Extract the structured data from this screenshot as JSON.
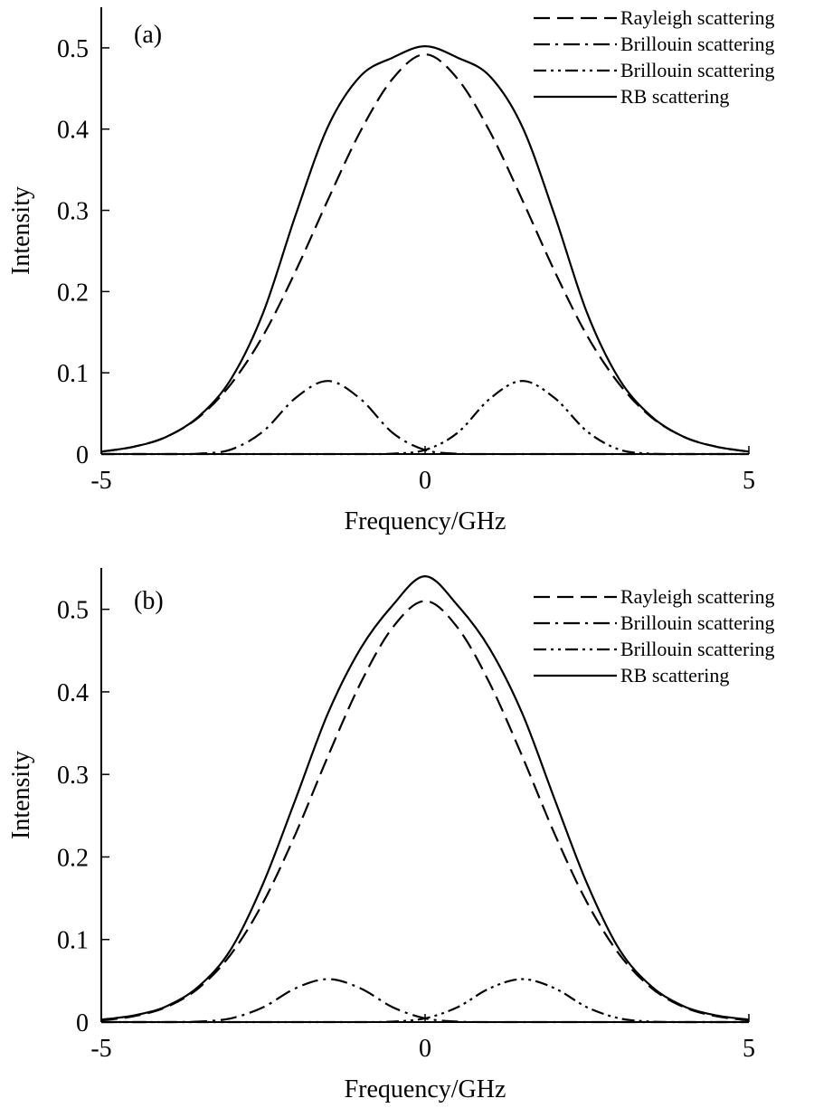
{
  "chart_data": [
    {
      "type": "line",
      "panel_label": "(a)",
      "xlabel": "Frequency/GHz",
      "ylabel": "Intensity",
      "xlim": [
        -5,
        5
      ],
      "ylim": [
        0,
        0.55
      ],
      "xticks": [
        -5,
        0,
        5
      ],
      "xtick_labels": [
        "-5",
        "0",
        "5"
      ],
      "yticks": [
        0,
        0.1,
        0.2,
        0.3,
        0.4,
        0.5
      ],
      "ytick_labels": [
        "0",
        "0.1",
        "0.2",
        "0.3",
        "0.4",
        "0.5"
      ],
      "grid": false,
      "legend_position": "top-right",
      "x": [
        -5,
        -4.5,
        -4,
        -3.5,
        -3,
        -2.5,
        -2,
        -1.5,
        -1,
        -0.5,
        0,
        0.5,
        1,
        1.5,
        2,
        2.5,
        3,
        3.5,
        4,
        4.5,
        5
      ],
      "series": [
        {
          "name": "Rayleigh scattering",
          "style": "dashed",
          "values": [
            0.003,
            0.009,
            0.021,
            0.045,
            0.086,
            0.146,
            0.225,
            0.313,
            0.397,
            0.462,
            0.492,
            0.462,
            0.397,
            0.313,
            0.225,
            0.146,
            0.086,
            0.045,
            0.021,
            0.009,
            0.003
          ]
        },
        {
          "name": "Brillouin scattering",
          "style": "dash-dot",
          "values": [
            0.0,
            0.0,
            0.0,
            0.0005,
            0.0055,
            0.028,
            0.069,
            0.09,
            0.068,
            0.026,
            0.005,
            0.0005,
            0.0,
            0.0,
            0.0,
            0.0,
            0.0,
            0.0,
            0.0,
            0.0,
            0.0
          ]
        },
        {
          "name": "Brillouin scattering",
          "style": "dash-dot-dot",
          "values": [
            0.0,
            0.0,
            0.0,
            0.0,
            0.0,
            0.0,
            0.0,
            0.0,
            0.0,
            0.0005,
            0.005,
            0.026,
            0.068,
            0.09,
            0.069,
            0.028,
            0.0055,
            0.0005,
            0.0,
            0.0,
            0.0
          ]
        },
        {
          "name": "RB scattering",
          "style": "solid",
          "values": [
            0.003,
            0.009,
            0.021,
            0.046,
            0.092,
            0.174,
            0.294,
            0.403,
            0.465,
            0.488,
            0.502,
            0.488,
            0.465,
            0.403,
            0.294,
            0.174,
            0.092,
            0.046,
            0.021,
            0.009,
            0.003
          ]
        }
      ]
    },
    {
      "type": "line",
      "panel_label": "(b)",
      "xlabel": "Frequency/GHz",
      "ylabel": "Intensity",
      "xlim": [
        -5,
        5
      ],
      "ylim": [
        0,
        0.55
      ],
      "xticks": [
        -5,
        0,
        5
      ],
      "xtick_labels": [
        "-5",
        "0",
        "5"
      ],
      "yticks": [
        0,
        0.1,
        0.2,
        0.3,
        0.4,
        0.5
      ],
      "ytick_labels": [
        "0",
        "0.1",
        "0.2",
        "0.3",
        "0.4",
        "0.5"
      ],
      "grid": false,
      "legend_position": "top-right",
      "x": [
        -5,
        -4.5,
        -4,
        -3.5,
        -3,
        -2.5,
        -2,
        -1.5,
        -1,
        -0.5,
        0,
        0.5,
        1,
        1.5,
        2,
        2.5,
        3,
        3.5,
        4,
        4.5,
        5
      ],
      "series": [
        {
          "name": "Rayleigh scattering",
          "style": "dashed",
          "values": [
            0.002,
            0.007,
            0.018,
            0.041,
            0.082,
            0.145,
            0.228,
            0.322,
            0.41,
            0.478,
            0.51,
            0.478,
            0.41,
            0.322,
            0.228,
            0.145,
            0.082,
            0.041,
            0.018,
            0.007,
            0.002
          ]
        },
        {
          "name": "Brillouin scattering",
          "style": "dash-dot",
          "values": [
            0.0,
            0.0,
            0.0,
            0.0006,
            0.0045,
            0.018,
            0.041,
            0.052,
            0.041,
            0.018,
            0.0045,
            0.0006,
            0.0,
            0.0,
            0.0,
            0.0,
            0.0,
            0.0,
            0.0,
            0.0,
            0.0
          ]
        },
        {
          "name": "Brillouin scattering",
          "style": "dash-dot-dot",
          "values": [
            0.0,
            0.0,
            0.0,
            0.0,
            0.0,
            0.0,
            0.0,
            0.0,
            0.0,
            0.0006,
            0.0045,
            0.018,
            0.041,
            0.052,
            0.041,
            0.018,
            0.0045,
            0.0006,
            0.0,
            0.0,
            0.0
          ]
        },
        {
          "name": "RB scattering",
          "style": "solid",
          "values": [
            0.003,
            0.008,
            0.019,
            0.043,
            0.088,
            0.168,
            0.27,
            0.374,
            0.452,
            0.505,
            0.54,
            0.505,
            0.452,
            0.374,
            0.27,
            0.168,
            0.088,
            0.043,
            0.019,
            0.008,
            0.003
          ]
        }
      ]
    }
  ]
}
